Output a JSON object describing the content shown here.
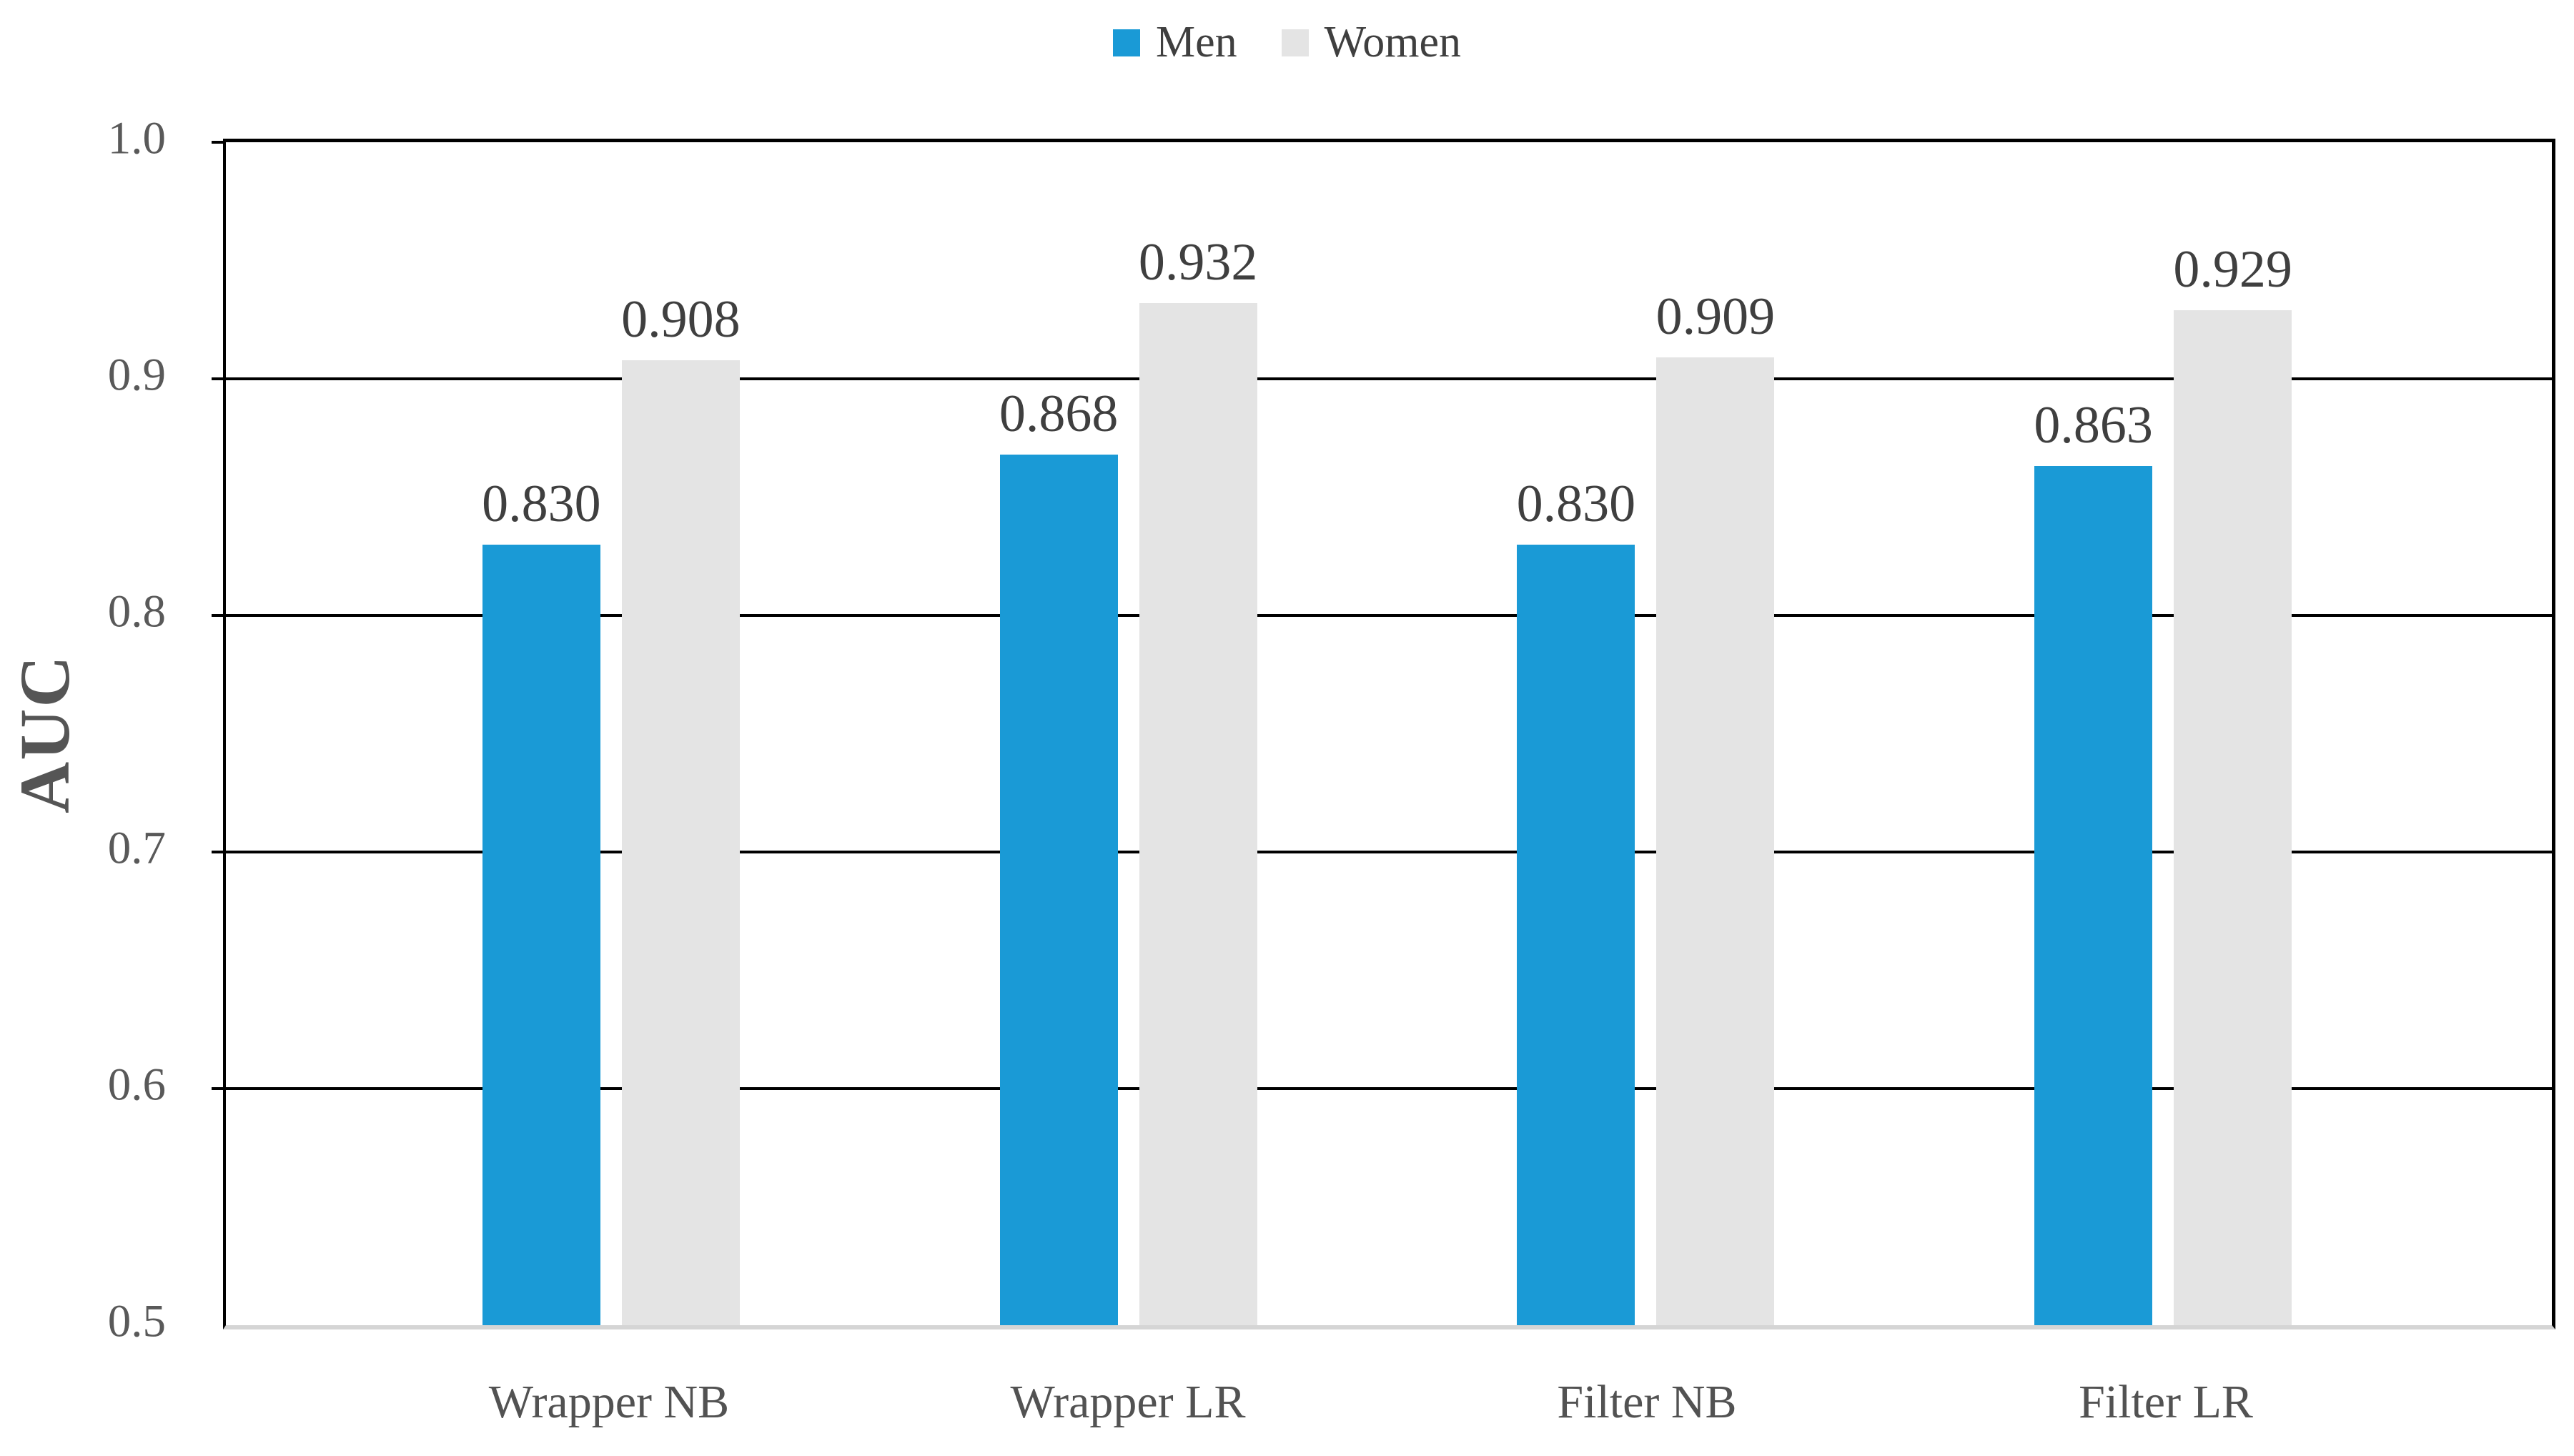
{
  "chart_data": {
    "type": "bar",
    "title": "",
    "categories": [
      "Wrapper NB",
      "Wrapper LR",
      "Filter NB",
      "Filter LR"
    ],
    "series": [
      {
        "name": "Men",
        "color": "#1a9ad6",
        "values": [
          0.83,
          0.868,
          0.83,
          0.863
        ],
        "value_labels": [
          "0.830",
          "0.868",
          "0.830",
          "0.863"
        ]
      },
      {
        "name": "Women",
        "color": "#e4e4e4",
        "values": [
          0.908,
          0.932,
          0.909,
          0.929
        ],
        "value_labels": [
          "0.908",
          "0.932",
          "0.909",
          "0.929"
        ]
      }
    ],
    "xlabel": "",
    "ylabel": "AUC",
    "ylim": [
      0.5,
      1.0
    ],
    "yticks": [
      1.0,
      0.9,
      0.8,
      0.7,
      0.6,
      0.5
    ],
    "ytick_labels": [
      "1.0",
      "0.9",
      "0.8",
      "0.7",
      "0.6",
      "0.5"
    ],
    "grid": "horizontal",
    "legend_position": "top-center",
    "bar_value_labels_shown": true,
    "colors": {
      "background": "#ffffff",
      "grid": "#000000",
      "axis_box": "#000000",
      "baseline": "#d5d5d5",
      "tick_text": "#595959",
      "category_text": "#525252",
      "value_label_text": "#3f3f3f",
      "legend_text": "#3f3f3f",
      "ylabel_text": "#555555"
    }
  }
}
